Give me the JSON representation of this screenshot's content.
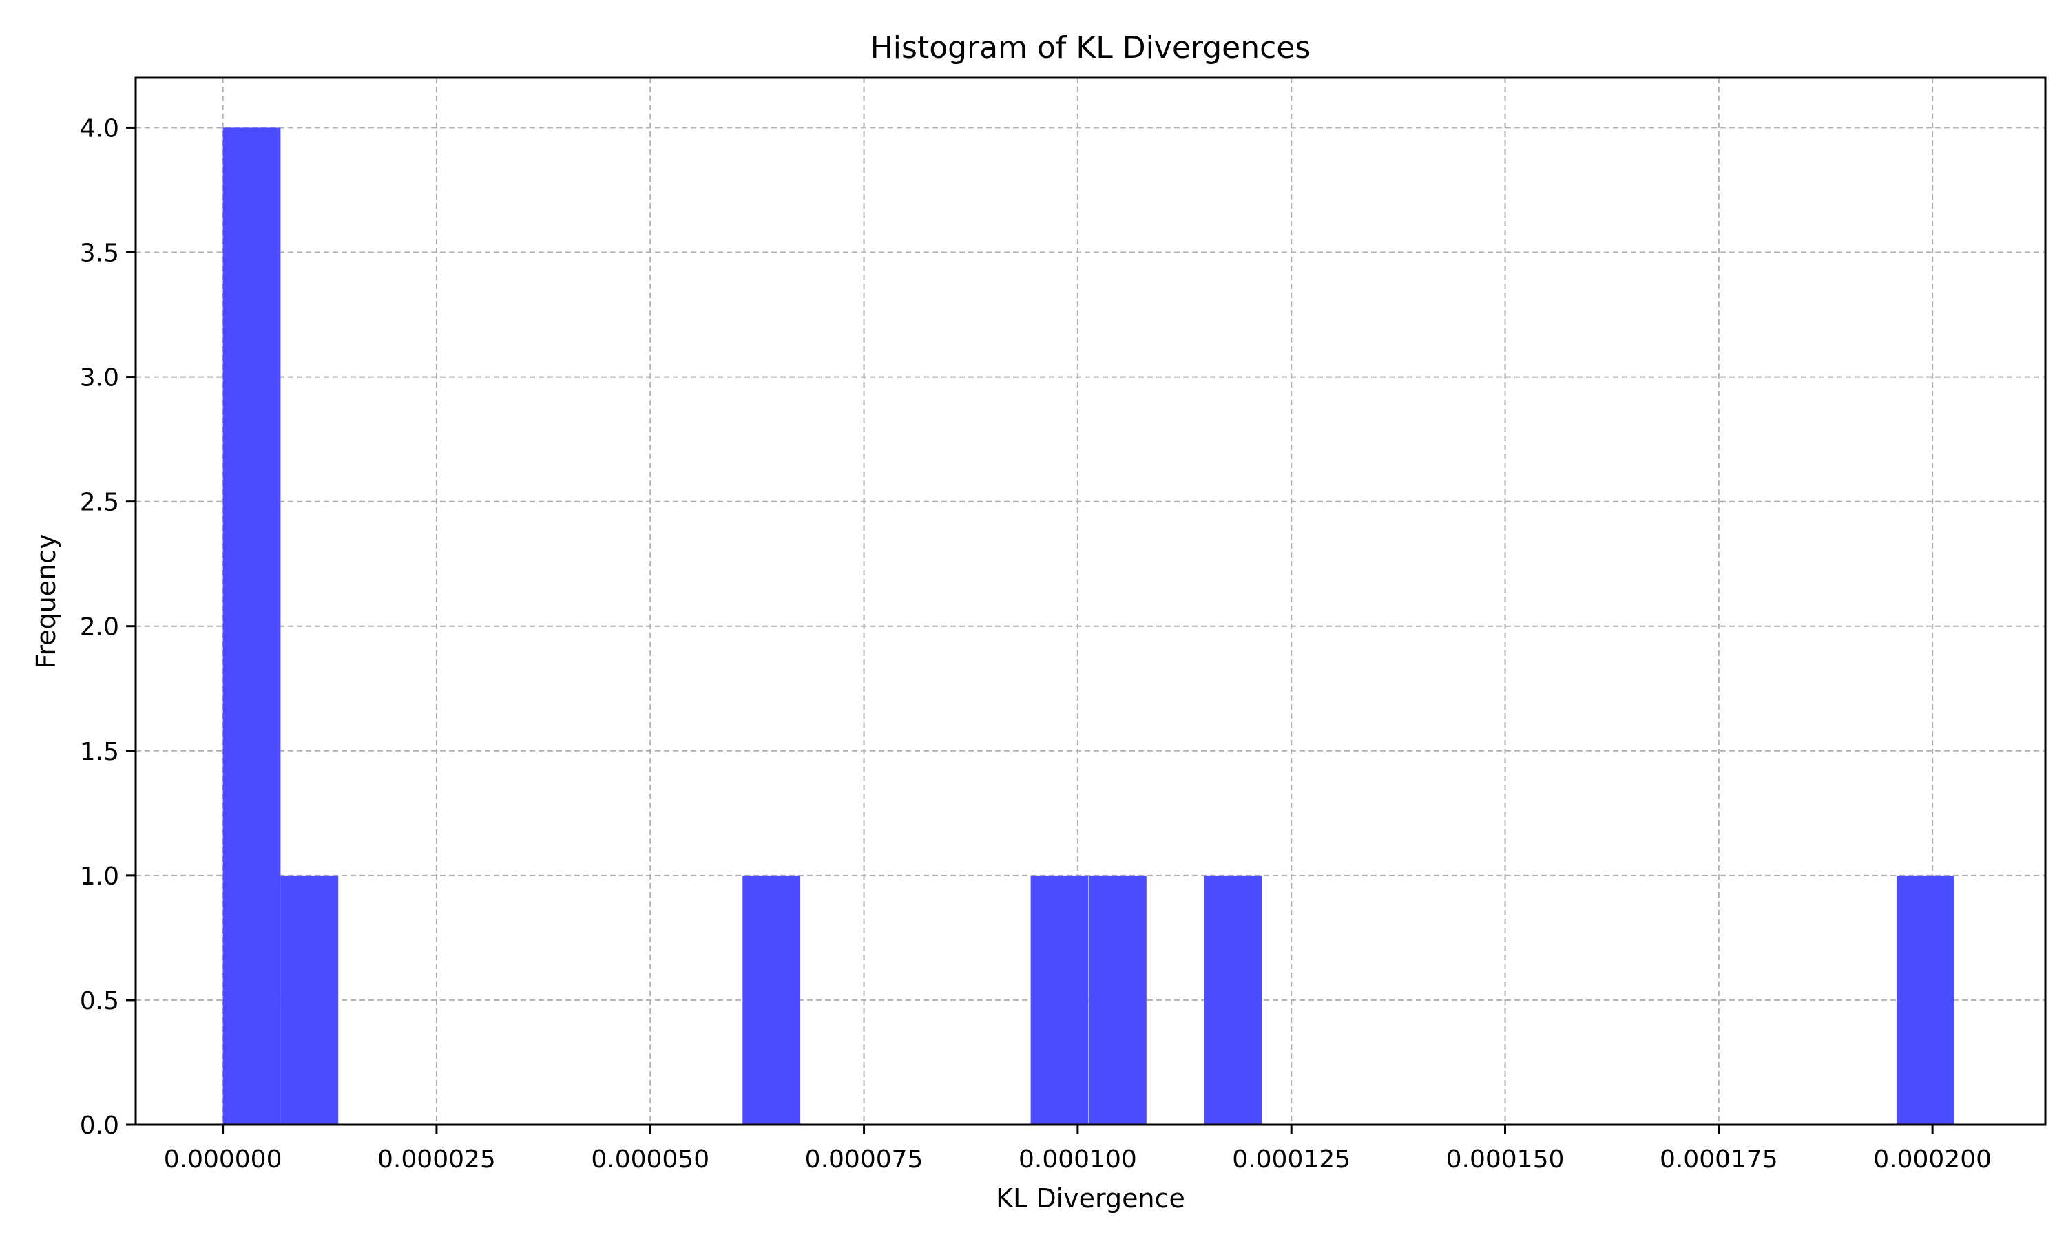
{
  "chart_data": {
    "type": "bar",
    "title": "Histogram of KL Divergences",
    "xlabel": "KL Divergence",
    "ylabel": "Frequency",
    "bar_color": "#4b4bff",
    "grid": true,
    "xlim": [
      -1.02e-05,
      0.0002132
    ],
    "ylim": [
      0,
      4.2
    ],
    "xticks": [
      0,
      2.5e-05,
      5e-05,
      7.5e-05,
      0.0001,
      0.000125,
      0.00015,
      0.000175,
      0.0002
    ],
    "xtick_labels": [
      "0.000000",
      "0.000025",
      "0.000050",
      "0.000075",
      "0.000100",
      "0.000125",
      "0.000150",
      "0.000175",
      "0.000200"
    ],
    "yticks": [
      0,
      0.5,
      1,
      1.5,
      2,
      2.5,
      3,
      3.5,
      4
    ],
    "ytick_labels": [
      "0.0",
      "0.5",
      "1.0",
      "1.5",
      "2.0",
      "2.5",
      "3.0",
      "3.5",
      "4.0"
    ],
    "bin_width": 6.75e-06,
    "bins": [
      {
        "start": 0.0,
        "count": 4
      },
      {
        "start": 6.75e-06,
        "count": 1
      },
      {
        "start": 6.08e-05,
        "count": 1
      },
      {
        "start": 9.45e-05,
        "count": 1
      },
      {
        "start": 0.0001013,
        "count": 1
      },
      {
        "start": 0.0001148,
        "count": 1
      },
      {
        "start": 0.0001958,
        "count": 1
      }
    ]
  }
}
